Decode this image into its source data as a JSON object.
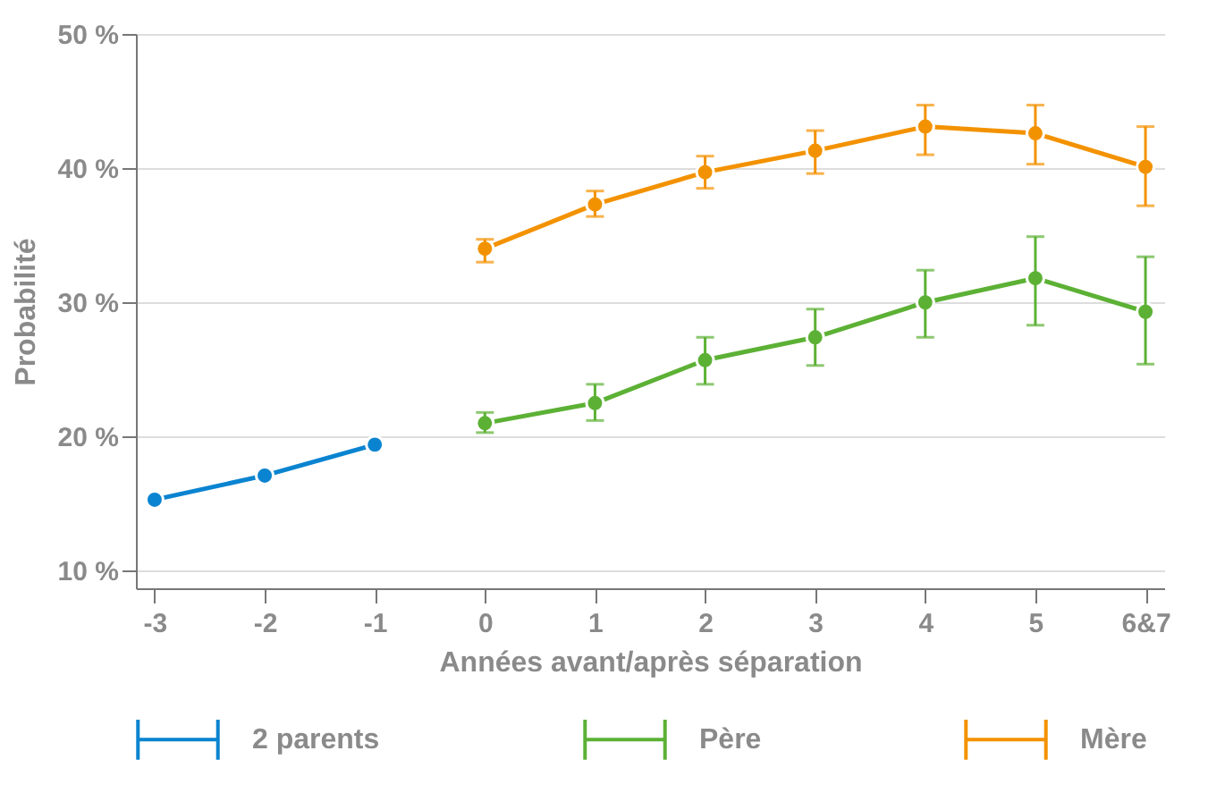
{
  "chart_data": {
    "type": "line",
    "xlabel": "Années avant/après séparation",
    "ylabel": "Probabilité",
    "categories": [
      "-3",
      "-2",
      "-1",
      "0",
      "1",
      "2",
      "3",
      "4",
      "5",
      "6&7"
    ],
    "ylim": [
      8.7,
      50
    ],
    "yticks": [
      {
        "value": 10,
        "label": "10 %"
      },
      {
        "value": 20,
        "label": "20 %"
      },
      {
        "value": 30,
        "label": "30 %"
      },
      {
        "value": 40,
        "label": "40 %"
      },
      {
        "value": 50,
        "label": "50 %"
      }
    ],
    "grid": "y",
    "legend": "bottom",
    "marker": "circle",
    "line_style": "solid",
    "series": [
      {
        "name": "2 parents",
        "color": "#0a84d0",
        "values": [
          15.3,
          17.1,
          19.4,
          null,
          null,
          null,
          null,
          null,
          null,
          null
        ]
      },
      {
        "name": "Père",
        "color": "#5cb135",
        "values": [
          null,
          null,
          null,
          21.0,
          22.5,
          25.7,
          27.4,
          30.0,
          31.8,
          29.3
        ],
        "errors": [
          null,
          null,
          null,
          [
            20.3,
            21.8
          ],
          [
            21.2,
            23.9
          ],
          [
            23.9,
            27.4
          ],
          [
            25.3,
            29.5
          ],
          [
            27.4,
            32.4
          ],
          [
            28.3,
            34.9
          ],
          [
            25.4,
            33.4
          ]
        ]
      },
      {
        "name": "Mère",
        "color": "#f39200",
        "values": [
          null,
          null,
          null,
          34.0,
          37.3,
          39.7,
          41.3,
          43.1,
          42.6,
          40.1
        ],
        "errors": [
          null,
          null,
          null,
          [
            33.0,
            34.7
          ],
          [
            36.4,
            38.3
          ],
          [
            38.5,
            40.9
          ],
          [
            39.6,
            42.8
          ],
          [
            41.0,
            44.7
          ],
          [
            40.3,
            44.7
          ],
          [
            37.2,
            43.1
          ]
        ]
      }
    ]
  }
}
